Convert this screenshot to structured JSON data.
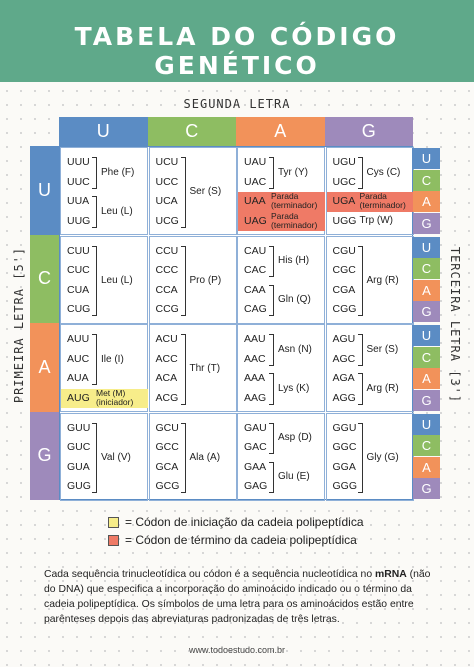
{
  "title": "TABELA DO CÓDIGO GENÉTICO",
  "axis": {
    "second": "SEGUNDA LETRA",
    "first": "PRIMEIRA LETRA [5']",
    "third": "TERCEIRA LETRA [3']"
  },
  "bases": [
    "U",
    "C",
    "A",
    "G"
  ],
  "colors": {
    "U": "#5b8cc4",
    "C": "#8ebd62",
    "A": "#f2925a",
    "G": "#9e8abb",
    "stop": "#ef7a66",
    "start": "#f7ed8a",
    "banner": "#5fa98a"
  },
  "cells": [
    [
      {
        "codons": [
          "UUU",
          "UUC",
          "UUA",
          "UUG"
        ],
        "groups": [
          {
            "from": 0,
            "to": 1,
            "label": "Phe (F)"
          },
          {
            "from": 2,
            "to": 3,
            "label": "Leu (L)"
          }
        ]
      },
      {
        "codons": [
          "UCU",
          "UCC",
          "UCA",
          "UCG"
        ],
        "groups": [
          {
            "from": 0,
            "to": 3,
            "label": "Ser (S)"
          }
        ]
      },
      {
        "codons": [
          "UAU",
          "UAC",
          "UAA",
          "UAG"
        ],
        "groups": [
          {
            "from": 0,
            "to": 1,
            "label": "Tyr (Y)"
          }
        ],
        "notes": [
          {
            "row": 2,
            "text": "Parada\n(terminador)",
            "type": "stop"
          },
          {
            "row": 3,
            "text": "Parada\n(terminador)",
            "type": "stop"
          }
        ]
      },
      {
        "codons": [
          "UGU",
          "UGC",
          "UGA",
          "UGG"
        ],
        "groups": [
          {
            "from": 0,
            "to": 1,
            "label": "Cys (C)"
          }
        ],
        "notes": [
          {
            "row": 2,
            "text": "Parada\n(terminador)",
            "type": "stop"
          },
          {
            "row": 3,
            "text": "Trp (W)",
            "type": "plain"
          }
        ]
      }
    ],
    [
      {
        "codons": [
          "CUU",
          "CUC",
          "CUA",
          "CUG"
        ],
        "groups": [
          {
            "from": 0,
            "to": 3,
            "label": "Leu (L)"
          }
        ]
      },
      {
        "codons": [
          "CCU",
          "CCC",
          "CCA",
          "CCG"
        ],
        "groups": [
          {
            "from": 0,
            "to": 3,
            "label": "Pro (P)"
          }
        ]
      },
      {
        "codons": [
          "CAU",
          "CAC",
          "CAA",
          "CAG"
        ],
        "groups": [
          {
            "from": 0,
            "to": 1,
            "label": "His (H)"
          },
          {
            "from": 2,
            "to": 3,
            "label": "Gln (Q)"
          }
        ]
      },
      {
        "codons": [
          "CGU",
          "CGC",
          "CGA",
          "CGG"
        ],
        "groups": [
          {
            "from": 0,
            "to": 3,
            "label": "Arg (R)"
          }
        ]
      }
    ],
    [
      {
        "codons": [
          "AUU",
          "AUC",
          "AUA",
          "AUG"
        ],
        "groups": [
          {
            "from": 0,
            "to": 2,
            "label": "Ile (I)"
          }
        ],
        "notes": [
          {
            "row": 3,
            "text": "Met (M)\n(iniciador)",
            "type": "start"
          }
        ]
      },
      {
        "codons": [
          "ACU",
          "ACC",
          "ACA",
          "ACG"
        ],
        "groups": [
          {
            "from": 0,
            "to": 3,
            "label": "Thr (T)"
          }
        ]
      },
      {
        "codons": [
          "AAU",
          "AAC",
          "AAA",
          "AAG"
        ],
        "groups": [
          {
            "from": 0,
            "to": 1,
            "label": "Asn (N)"
          },
          {
            "from": 2,
            "to": 3,
            "label": "Lys (K)"
          }
        ]
      },
      {
        "codons": [
          "AGU",
          "AGC",
          "AGA",
          "AGG"
        ],
        "groups": [
          {
            "from": 0,
            "to": 1,
            "label": "Ser (S)"
          },
          {
            "from": 2,
            "to": 3,
            "label": "Arg (R)"
          }
        ]
      }
    ],
    [
      {
        "codons": [
          "GUU",
          "GUC",
          "GUA",
          "GUG"
        ],
        "groups": [
          {
            "from": 0,
            "to": 3,
            "label": "Val (V)"
          }
        ]
      },
      {
        "codons": [
          "GCU",
          "GCC",
          "GCA",
          "GCG"
        ],
        "groups": [
          {
            "from": 0,
            "to": 3,
            "label": "Ala (A)"
          }
        ]
      },
      {
        "codons": [
          "GAU",
          "GAC",
          "GAA",
          "GAG"
        ],
        "groups": [
          {
            "from": 0,
            "to": 1,
            "label": "Asp (D)"
          },
          {
            "from": 2,
            "to": 3,
            "label": "Glu (E)"
          }
        ]
      },
      {
        "codons": [
          "GGU",
          "GGC",
          "GGA",
          "GGG"
        ],
        "groups": [
          {
            "from": 0,
            "to": 3,
            "label": "Gly (G)"
          }
        ]
      }
    ]
  ],
  "legend": {
    "start": "= Códon de iniciação da cadeia polipeptídica",
    "stop": "= Códon de término da cadeia polipeptídica"
  },
  "footnote": {
    "before": "Cada sequência trinucleotídica ou códon é a sequência nucleotídica no ",
    "bold": "mRNA",
    "after": " (não do DNA) que especifica a incorporação do aminoácido indicado ou o término da cadeia polipeptídica. Os símbolos de uma letra para os aminoácidos estão entre parênteses depois das abreviaturas padronizadas de três letras."
  },
  "site": "www.todoestudo.com.br"
}
